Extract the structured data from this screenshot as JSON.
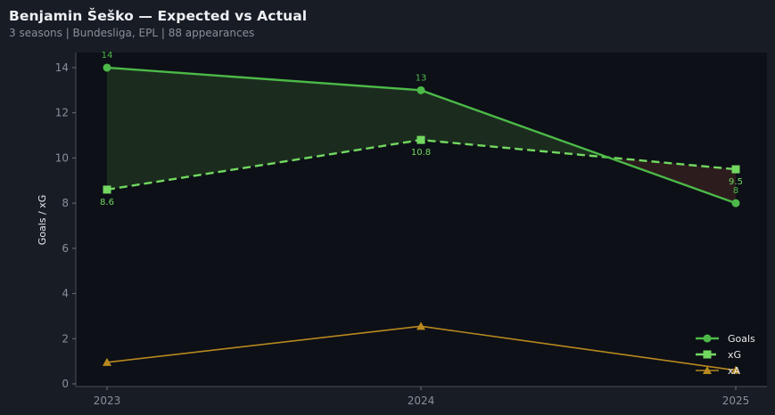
{
  "header": {
    "title": "Benjamin Šeško — Expected vs Actual",
    "subtitle": "3 seasons | Bundesliga, EPL | 88 appearances"
  },
  "colors": {
    "background": "#181c24",
    "plot_bg": "#0d1017",
    "goals": "#4cba48",
    "xg": "#72d860",
    "xa": "#b8891f",
    "overperf_fill": "#1b2c1e",
    "underperf_fill": "#2c1c1e"
  },
  "chart_data": {
    "type": "line",
    "title": "Benjamin Šeško — Expected vs Actual",
    "subtitle": "3 seasons | Bundesliga, EPL | 88 appearances",
    "xlabel": "",
    "ylabel": "Goals / xG",
    "x": [
      "2023",
      "2024",
      "2025"
    ],
    "yticks": [
      0,
      2,
      4,
      6,
      8,
      10,
      12,
      14
    ],
    "ylim": [
      -0.3,
      14.6
    ],
    "grid": false,
    "legend_position": "lower right",
    "series": [
      {
        "name": "Goals",
        "values": [
          14,
          13,
          8
        ],
        "marker": "circle",
        "style": "solid",
        "labels": [
          "14",
          "13",
          "8"
        ]
      },
      {
        "name": "xG",
        "values": [
          8.6,
          10.8,
          9.5
        ],
        "marker": "square",
        "style": "dashed",
        "labels": [
          "8.6",
          "10.8",
          "9.5"
        ]
      },
      {
        "name": "xA",
        "values": [
          0.95,
          2.55,
          0.6
        ],
        "marker": "triangle",
        "style": "solid"
      }
    ],
    "annotations": [
      "shaded green where Goals > xG",
      "shaded red where Goals < xG"
    ]
  },
  "legend": {
    "items": [
      {
        "label": "Goals"
      },
      {
        "label": "xG"
      },
      {
        "label": "xA"
      }
    ]
  }
}
